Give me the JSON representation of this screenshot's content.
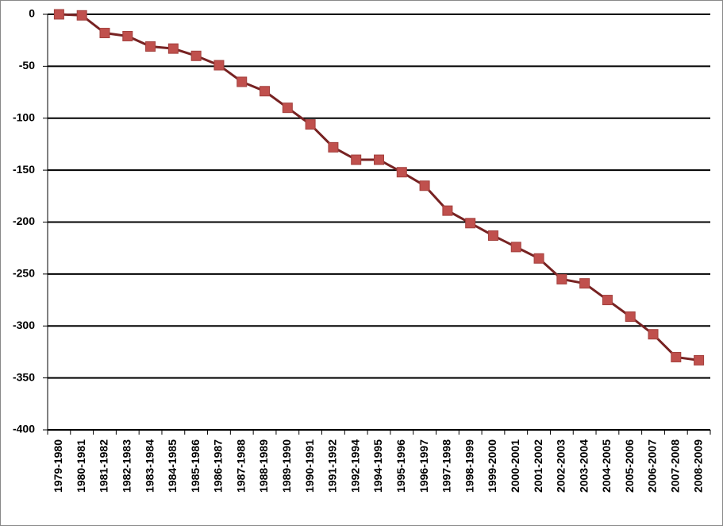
{
  "chart_data": {
    "type": "line",
    "categories": [
      "1979-1980",
      "1980-1981",
      "1981-1982",
      "1982-1983",
      "1983-1984",
      "1984-1985",
      "1985-1986",
      "1986-1987",
      "1987-1988",
      "1988-1989",
      "1989-1990",
      "1990-1991",
      "1991-1992",
      "1992-1994",
      "1994-1995",
      "1995-1996",
      "1996-1997",
      "1997-1998",
      "1998-1999",
      "1999-2000",
      "2000-2001",
      "2001-2002",
      "2002-2003",
      "2003-2004",
      "2004-2005",
      "2005-2006",
      "2006-2007",
      "2007-2008",
      "2008-2009"
    ],
    "values": [
      0,
      -1,
      -18,
      -21,
      -31,
      -33,
      -40,
      -49,
      -65,
      -74,
      -90,
      -106,
      -128,
      -140,
      -140,
      -152,
      -165,
      -189,
      -201,
      -213,
      -224,
      -235,
      -255,
      -259,
      -275,
      -291,
      -308,
      -330,
      -333
    ],
    "line_color": "#772222",
    "marker_color": "#c0504d",
    "ylim": [
      -400,
      0
    ],
    "yticks": [
      0,
      -50,
      -100,
      -150,
      -200,
      -250,
      -300,
      -350,
      -400
    ],
    "grid": true
  }
}
